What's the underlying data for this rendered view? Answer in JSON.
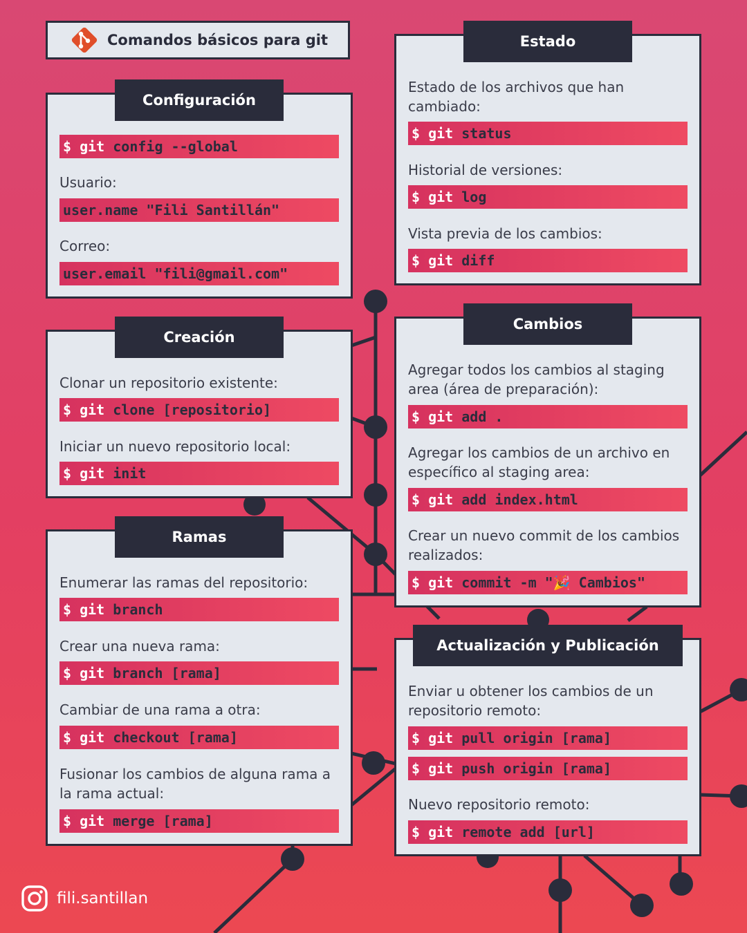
{
  "title": "Comandos básicos para git",
  "colors": {
    "background_top": "#d94873",
    "background_bottom": "#ec4852",
    "card": "#e4e8ee",
    "dark": "#2a2c3b",
    "command_bar_start": "#d6325f",
    "command_bar_end": "#ee4a62",
    "command_keyword": "#ffffff",
    "git_logo": "#e04e2a"
  },
  "icons": {
    "title_logo": "git-logo-icon",
    "footer": "instagram-icon"
  },
  "sections": {
    "configuracion": {
      "header": "Configuración",
      "command": "$ git config --global",
      "user_label": "Usuario:",
      "user_cmd": "user.name \"Fili Santillán\"",
      "email_label": "Correo:",
      "email_cmd": "user.email \"fili@gmail.com\""
    },
    "creacion": {
      "header": "Creación",
      "clone_desc": "Clonar un repositorio existente:",
      "clone_cmd": "$ git clone [repositorio]",
      "init_desc": "Iniciar un nuevo repositorio local:",
      "init_cmd": "$ git init"
    },
    "ramas": {
      "header": "Ramas",
      "list_desc": "Enumerar las ramas del repositorio:",
      "list_cmd": "$ git branch",
      "new_desc": "Crear una nueva rama:",
      "new_cmd": "$ git branch [rama]",
      "switch_desc": "Cambiar de una rama a otra:",
      "switch_cmd": "$ git checkout [rama]",
      "merge_desc": "Fusionar los cambios de alguna rama a la rama actual:",
      "merge_cmd": "$ git merge [rama]"
    },
    "estado": {
      "header": "Estado",
      "status_desc": "Estado de los archivos que han cambiado:",
      "status_cmd": "$ git status",
      "log_desc": "Historial de versiones:",
      "log_cmd": "$ git log",
      "diff_desc": "Vista previa de los cambios:",
      "diff_cmd": "$ git diff"
    },
    "cambios": {
      "header": "Cambios",
      "add_all_desc": "Agregar todos los cambios al staging area (área de preparación):",
      "add_all_cmd": "$ git add .",
      "add_file_desc": "Agregar los cambios de un archivo en específico al staging area:",
      "add_file_cmd": "$ git add index.html",
      "commit_desc": "Crear un nuevo commit de los cambios realizados:",
      "commit_cmd": "$ git commit -m \"🎉 Cambios\""
    },
    "actualizacion": {
      "header": "Actualización y Publicación",
      "sync_desc": "Enviar u obtener los cambios de un repositorio remoto:",
      "pull_cmd": "$ git pull origin [rama]",
      "push_cmd": "$ git push origin [rama]",
      "remote_desc": "Nuevo repositorio remoto:",
      "remote_cmd": "$ git remote add [url]"
    }
  },
  "footer": {
    "handle": "fili.santillan"
  }
}
